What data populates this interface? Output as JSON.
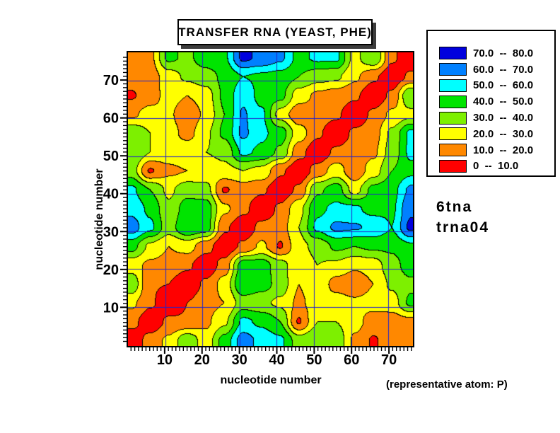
{
  "title": "TRANSFER RNA (YEAST, PHE)",
  "annotations": {
    "structure_id": "6tna",
    "plot_id": "trna04",
    "note": "(representative atom: P)"
  },
  "legend": {
    "entries": [
      {
        "range": "70.0  --  80.0",
        "color": "#0000dd"
      },
      {
        "range": "60.0  --  70.0",
        "color": "#0080ff"
      },
      {
        "range": "50.0  --  60.0",
        "color": "#00ffff"
      },
      {
        "range": "40.0  --  50.0",
        "color": "#00e400"
      },
      {
        "range": "30.0  --  40.0",
        "color": "#7df000"
      },
      {
        "range": "20.0  --  30.0",
        "color": "#ffff00"
      },
      {
        "range": "10.0  --  20.0",
        "color": "#ff8800"
      },
      {
        "range": "0  --  10.0",
        "color": "#ff0000"
      }
    ]
  },
  "chart_data": {
    "type": "heatmap",
    "subtype": "filled-contour-distance-matrix",
    "title": "TRANSFER RNA (YEAST, PHE)",
    "xlabel": "nucleotide number",
    "ylabel": "nucleotide number",
    "xlim": [
      0,
      76.6
    ],
    "ylim": [
      -0.4,
      77.5
    ],
    "x_ticks": [
      10,
      20,
      30,
      40,
      50,
      60,
      70
    ],
    "y_ticks": [
      10,
      20,
      30,
      40,
      50,
      60,
      70
    ],
    "minor_tick_step": 1,
    "minor_tick_range": [
      1,
      76
    ],
    "grid_lines": [
      10,
      20,
      30,
      40,
      50,
      60,
      70
    ],
    "grid_color": "#2222cc",
    "contour_line_color": "#000000",
    "bands": {
      "edges": [
        0,
        10,
        20,
        30,
        40,
        50,
        60,
        70,
        80
      ],
      "colors": [
        "#ff0000",
        "#ff8800",
        "#ffff00",
        "#7df000",
        "#00e400",
        "#00ffff",
        "#0080ff",
        "#0000dd"
      ]
    },
    "sample_positions": [
      1,
      6,
      11,
      16,
      21,
      26,
      31,
      36,
      41,
      46,
      51,
      56,
      61,
      66,
      71,
      76
    ],
    "values_note": "inter-nucleotide distance values (P atoms), estimated from contour band colors at 5-residue grid points",
    "values": [
      [
        2,
        14,
        22,
        38,
        24,
        44,
        65,
        57,
        52,
        35,
        40,
        38,
        18,
        9,
        15,
        15
      ],
      [
        14,
        2,
        12,
        11,
        18,
        28,
        52,
        48,
        40,
        9,
        30,
        30,
        24,
        15,
        15,
        17
      ],
      [
        22,
        12,
        2,
        10,
        16,
        20,
        35,
        32,
        28,
        18,
        25,
        25,
        22,
        24,
        25,
        42
      ],
      [
        38,
        11,
        10,
        2,
        12,
        24,
        50,
        45,
        36,
        20,
        28,
        16,
        12,
        20,
        32,
        38
      ],
      [
        24,
        18,
        16,
        12,
        2,
        14,
        45,
        45,
        34,
        22,
        30,
        28,
        22,
        25,
        36,
        45
      ],
      [
        44,
        28,
        20,
        24,
        14,
        2,
        12,
        22,
        9,
        27,
        33,
        42,
        40,
        42,
        42,
        48
      ],
      [
        65,
        52,
        35,
        50,
        45,
        12,
        2,
        13,
        15,
        30,
        52,
        62,
        61,
        58,
        50,
        72
      ],
      [
        57,
        48,
        32,
        45,
        45,
        22,
        13,
        2,
        12,
        27,
        48,
        52,
        52,
        46,
        48,
        68
      ],
      [
        52,
        40,
        28,
        36,
        34,
        9,
        15,
        12,
        2,
        12,
        38,
        45,
        26,
        43,
        46,
        62
      ],
      [
        35,
        9,
        18,
        20,
        22,
        27,
        30,
        27,
        12,
        2,
        14,
        25,
        13,
        25,
        40,
        47
      ],
      [
        40,
        30,
        25,
        28,
        30,
        33,
        52,
        48,
        38,
        14,
        2,
        12,
        15,
        18,
        34,
        52
      ],
      [
        38,
        30,
        25,
        16,
        28,
        42,
        62,
        52,
        45,
        25,
        12,
        2,
        12,
        15,
        32,
        52
      ],
      [
        18,
        24,
        22,
        12,
        22,
        40,
        61,
        52,
        26,
        13,
        15,
        12,
        2,
        12,
        22,
        27
      ],
      [
        9,
        15,
        24,
        20,
        25,
        42,
        58,
        46,
        43,
        25,
        18,
        15,
        12,
        2,
        12,
        40
      ],
      [
        15,
        15,
        25,
        32,
        36,
        42,
        50,
        48,
        46,
        40,
        34,
        32,
        22,
        12,
        2,
        12
      ],
      [
        15,
        17,
        42,
        38,
        45,
        48,
        72,
        68,
        62,
        47,
        52,
        52,
        27,
        40,
        12,
        2
      ]
    ]
  }
}
